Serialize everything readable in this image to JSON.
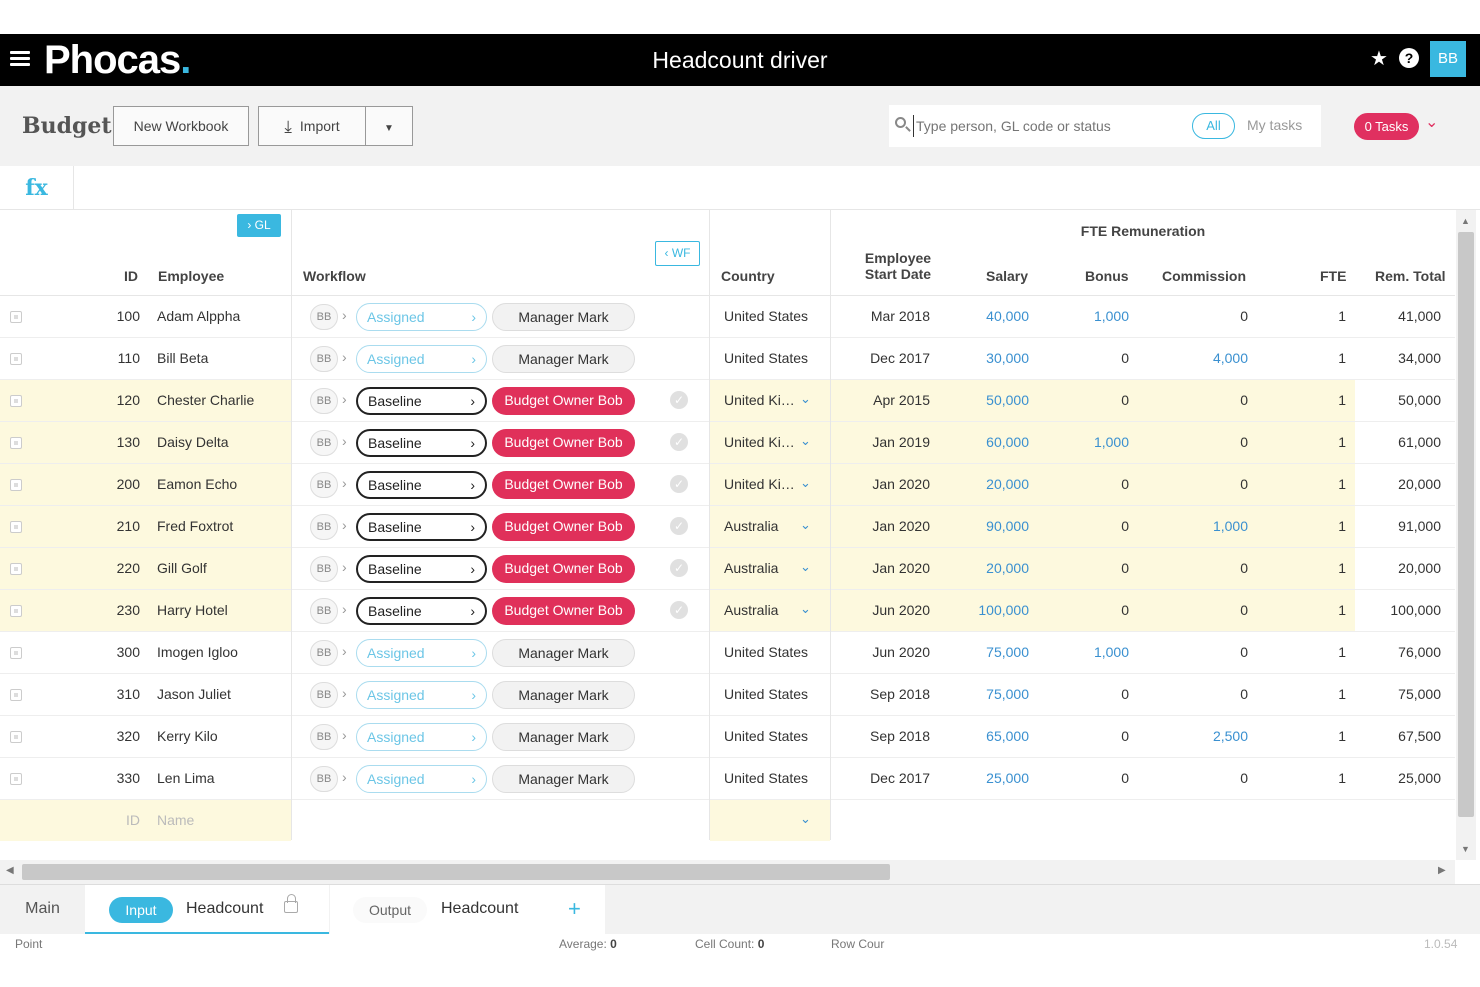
{
  "header": {
    "logo": "Phocas",
    "logo_dot": ".",
    "title": "Headcount driver",
    "avatar": "BB",
    "star_icon": "star-icon",
    "help_icon": "help-icon"
  },
  "toolbar": {
    "page_title": "Budget",
    "new_workbook": "New Workbook",
    "import": "Import",
    "search_placeholder": "Type person, GL code or status",
    "filter_all": "All",
    "my_tasks": "My tasks",
    "tasks_badge": "0 Tasks"
  },
  "formula_bar": {
    "label": "fx"
  },
  "grid": {
    "gl_button": "GL",
    "wf_button": "WF",
    "group_title": "FTE Remuneration",
    "columns": {
      "id": "ID",
      "employee": "Employee",
      "workflow": "Workflow",
      "country": "Country",
      "start_date_1": "Employee",
      "start_date_2": "Start Date",
      "salary": "Salary",
      "bonus": "Bonus",
      "commission": "Commission",
      "fte": "FTE",
      "rem_total": "Rem. Total"
    },
    "rows": [
      {
        "id": "100",
        "name": "Adam Alppha",
        "bb": "BB",
        "status": "Assigned",
        "owner": "Manager Mark",
        "country": "United States",
        "start": "Mar 2018",
        "salary": "40,000",
        "bonus": "1,000",
        "commission": "0",
        "fte": "1",
        "total": "41,000"
      },
      {
        "id": "110",
        "name": "Bill Beta",
        "bb": "BB",
        "status": "Assigned",
        "owner": "Manager Mark",
        "country": "United States",
        "start": "Dec 2017",
        "salary": "30,000",
        "bonus": "0",
        "commission": "4,000",
        "fte": "1",
        "total": "34,000"
      },
      {
        "id": "120",
        "name": "Chester Charlie",
        "bb": "BB",
        "status": "Baseline",
        "owner": "Budget Owner Bob",
        "country": "United Ki…",
        "start": "Apr 2015",
        "salary": "50,000",
        "bonus": "0",
        "commission": "0",
        "fte": "1",
        "total": "50,000"
      },
      {
        "id": "130",
        "name": "Daisy Delta",
        "bb": "BB",
        "status": "Baseline",
        "owner": "Budget Owner Bob",
        "country": "United Ki…",
        "start": "Jan 2019",
        "salary": "60,000",
        "bonus": "1,000",
        "commission": "0",
        "fte": "1",
        "total": "61,000"
      },
      {
        "id": "200",
        "name": "Eamon Echo",
        "bb": "BB",
        "status": "Baseline",
        "owner": "Budget Owner Bob",
        "country": "United Ki…",
        "start": "Jan 2020",
        "salary": "20,000",
        "bonus": "0",
        "commission": "0",
        "fte": "1",
        "total": "20,000"
      },
      {
        "id": "210",
        "name": "Fred Foxtrot",
        "bb": "BB",
        "status": "Baseline",
        "owner": "Budget Owner Bob",
        "country": "Australia",
        "start": "Jan 2020",
        "salary": "90,000",
        "bonus": "0",
        "commission": "1,000",
        "fte": "1",
        "total": "91,000"
      },
      {
        "id": "220",
        "name": "Gill Golf",
        "bb": "BB",
        "status": "Baseline",
        "owner": "Budget Owner Bob",
        "country": "Australia",
        "start": "Jan 2020",
        "salary": "20,000",
        "bonus": "0",
        "commission": "0",
        "fte": "1",
        "total": "20,000"
      },
      {
        "id": "230",
        "name": "Harry Hotel",
        "bb": "BB",
        "status": "Baseline",
        "owner": "Budget Owner Bob",
        "country": "Australia",
        "start": "Jun 2020",
        "salary": "100,000",
        "bonus": "0",
        "commission": "0",
        "fte": "1",
        "total": "100,000"
      },
      {
        "id": "300",
        "name": "Imogen Igloo",
        "bb": "BB",
        "status": "Assigned",
        "owner": "Manager Mark",
        "country": "United States",
        "start": "Jun 2020",
        "salary": "75,000",
        "bonus": "1,000",
        "commission": "0",
        "fte": "1",
        "total": "76,000"
      },
      {
        "id": "310",
        "name": "Jason Juliet",
        "bb": "BB",
        "status": "Assigned",
        "owner": "Manager Mark",
        "country": "United States",
        "start": "Sep 2018",
        "salary": "75,000",
        "bonus": "0",
        "commission": "0",
        "fte": "1",
        "total": "75,000"
      },
      {
        "id": "320",
        "name": "Kerry Kilo",
        "bb": "BB",
        "status": "Assigned",
        "owner": "Manager Mark",
        "country": "United States",
        "start": "Sep 2018",
        "salary": "65,000",
        "bonus": "0",
        "commission": "2,500",
        "fte": "1",
        "total": "67,500"
      },
      {
        "id": "330",
        "name": "Len Lima",
        "bb": "BB",
        "status": "Assigned",
        "owner": "Manager Mark",
        "country": "United States",
        "start": "Dec 2017",
        "salary": "25,000",
        "bonus": "0",
        "commission": "0",
        "fte": "1",
        "total": "25,000"
      }
    ],
    "new_row": {
      "id_placeholder": "ID",
      "name_placeholder": "Name"
    }
  },
  "tabs": {
    "main": "Main",
    "input_pill": "Input",
    "input_label": "Headcount",
    "output_pill": "Output",
    "output_label": "Headcount",
    "add": "+"
  },
  "statusbar": {
    "point": "Point",
    "average_label": "Average:",
    "average_value": "0",
    "cell_count_label": "Cell Count:",
    "cell_count_value": "0",
    "row_count_label": "Row Cour",
    "version": "1.0.54"
  }
}
